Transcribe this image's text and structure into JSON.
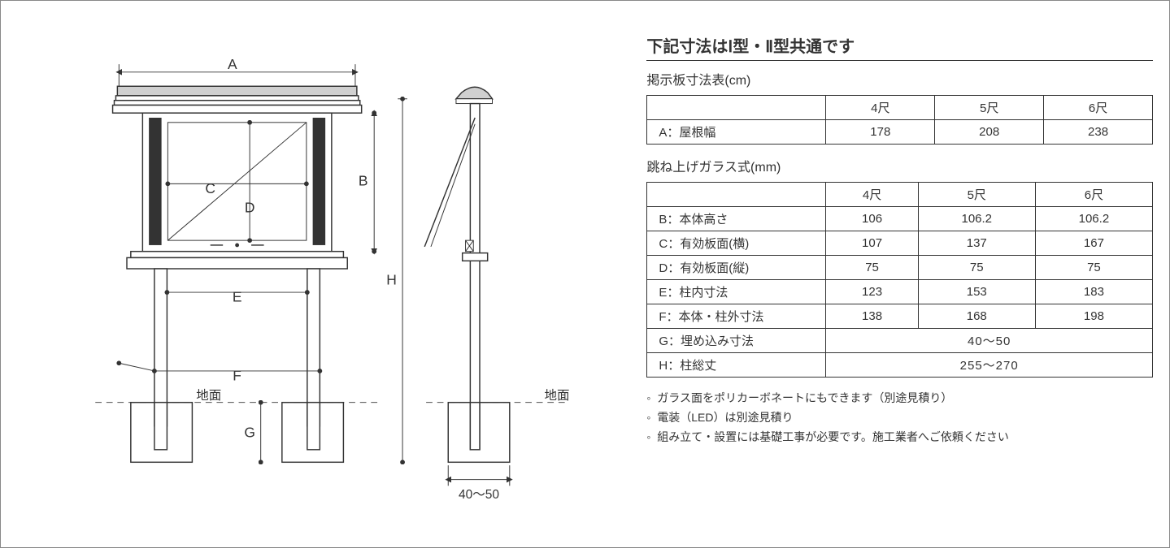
{
  "title": "下記寸法はⅠ型・Ⅱ型共通です",
  "table1": {
    "title": "掲示板寸法表(cm)",
    "columns": [
      "",
      "4尺",
      "5尺",
      "6尺"
    ],
    "rows": [
      {
        "label": "A：屋根幅",
        "values": [
          "178",
          "208",
          "238"
        ]
      }
    ]
  },
  "table2": {
    "title": "跳ね上げガラス式(mm)",
    "columns": [
      "",
      "4尺",
      "5尺",
      "6尺"
    ],
    "rows": [
      {
        "label": "B：本体高さ",
        "values": [
          "106",
          "106.2",
          "106.2"
        ]
      },
      {
        "label": "C：有効板面(横)",
        "values": [
          "107",
          "137",
          "167"
        ]
      },
      {
        "label": "D：有効板面(縦)",
        "values": [
          "75",
          "75",
          "75"
        ]
      },
      {
        "label": "E：柱内寸法",
        "values": [
          "123",
          "153",
          "183"
        ]
      },
      {
        "label": "F：本体・柱外寸法",
        "values": [
          "138",
          "168",
          "198"
        ]
      },
      {
        "label": "G：埋め込み寸法",
        "merged": "40〜50"
      },
      {
        "label": "H：柱総丈",
        "merged": "255〜270"
      }
    ]
  },
  "notes": [
    "ガラス面をポリカーボネートにもできます（別途見積り）",
    "電装（LED）は別途見積り",
    "組み立て・設置には基礎工事が必要です。施工業者へご依頼ください"
  ],
  "diagram": {
    "labels": {
      "A": "A",
      "B": "B",
      "C": "C",
      "D": "D",
      "E": "E",
      "F": "F",
      "G": "G",
      "H": "H",
      "ground": "地面",
      "base_range": "40〜50"
    },
    "colors": {
      "stroke": "#333333",
      "hatch": "#333333",
      "roof_fill": "#d0d0d0",
      "glass_fill": "#ffffff"
    }
  }
}
